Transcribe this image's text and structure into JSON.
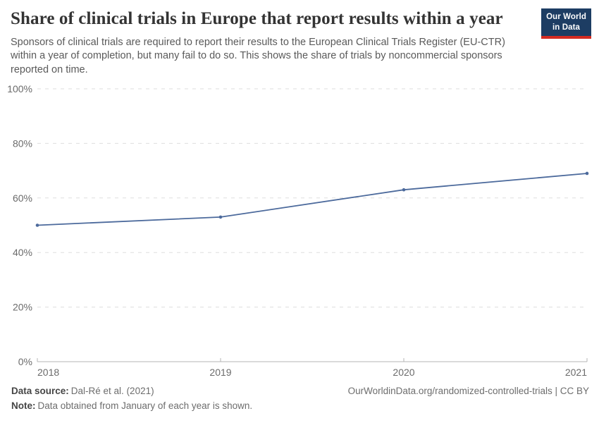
{
  "header": {
    "title": "Share of clinical trials in Europe that report results within a year",
    "subtitle": "Sponsors of clinical trials are required to report their results to the European Clinical Trials Register (EU-CTR) within a year of completion, but many fail to do so. This shows the share of trials by noncommercial sponsors reported on time.",
    "logo": {
      "line1": "Our World",
      "line2": "in Data",
      "background_color": "#1d3d63",
      "accent_color": "#d42b21"
    }
  },
  "chart_data": {
    "type": "line",
    "title": "Share of clinical trials in Europe that report results within a year",
    "x": [
      2018,
      2019,
      2020,
      2021
    ],
    "values": [
      50,
      53,
      63,
      69
    ],
    "series_name": "Share of trials by noncommercial sponsors reported on time",
    "xlabel": "",
    "ylabel": "",
    "ylim": [
      0,
      100
    ],
    "yticks": [
      0,
      20,
      40,
      60,
      80,
      100
    ],
    "ytick_format": "{v}%",
    "xticks": [
      2018,
      2019,
      2020,
      2021
    ],
    "grid": "horizontal-dashed",
    "legend": "none",
    "line_color": "#4c6a9c",
    "gridline_color": "#dedede",
    "axis_color": "#b5b5b5"
  },
  "footer": {
    "source_label": "Data source:",
    "source_text": "Dal-Ré et al. (2021)",
    "note_label": "Note:",
    "note_text": "Data obtained from January of each year is shown.",
    "credit": "OurWorldinData.org/randomized-controlled-trials | CC BY"
  }
}
